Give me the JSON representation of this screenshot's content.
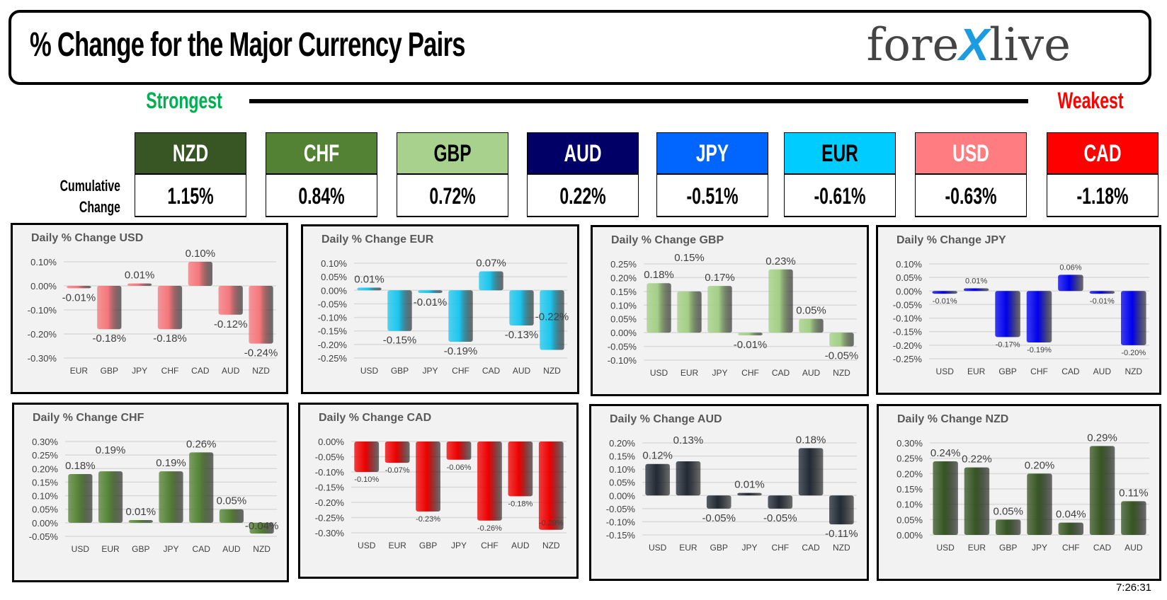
{
  "header": {
    "title": "% Change for the Major Currency Pairs",
    "logo": "forexlive"
  },
  "scale": {
    "strongest": "Strongest",
    "weakest": "Weakest",
    "row_label_1": "Cumulative",
    "row_label_2": "Change"
  },
  "currencies": [
    {
      "code": "NZD",
      "change": "1.15%",
      "color": "#375623",
      "text": "#ffffff"
    },
    {
      "code": "CHF",
      "change": "0.84%",
      "color": "#548235",
      "text": "#ffffff"
    },
    {
      "code": "GBP",
      "change": "0.72%",
      "color": "#a9d18e",
      "text": "#000000"
    },
    {
      "code": "AUD",
      "change": "0.22%",
      "color": "#000066",
      "text": "#ffffff"
    },
    {
      "code": "JPY",
      "change": "-0.51%",
      "color": "#0066ff",
      "text": "#ffffff"
    },
    {
      "code": "EUR",
      "change": "-0.61%",
      "color": "#00ccff",
      "text": "#000000"
    },
    {
      "code": "USD",
      "change": "-0.63%",
      "color": "#ff7c80",
      "text": "#ffffff"
    },
    {
      "code": "CAD",
      "change": "-1.18%",
      "color": "#ff0000",
      "text": "#ffffff"
    }
  ],
  "timestamp": "7:26:31",
  "chart_data": [
    {
      "type": "bar",
      "title": "Daily % Change USD",
      "categories": [
        "EUR",
        "GBP",
        "JPY",
        "CHF",
        "CAD",
        "AUD",
        "NZD"
      ],
      "values": [
        -0.01,
        -0.18,
        0.01,
        -0.18,
        0.1,
        -0.12,
        -0.24
      ],
      "ylim": [
        -0.3,
        0.1
      ],
      "ticks": [
        "0.10%",
        "0.00%",
        "-0.10%",
        "-0.20%",
        "-0.30%"
      ],
      "labels": [
        "-0.01%",
        "-0.18%",
        "0.01%",
        "-0.18%",
        "0.10%",
        "-0.12%",
        "-0.24%"
      ],
      "color": "#f4777b",
      "grid": true
    },
    {
      "type": "bar",
      "title": "Daily % Change EUR",
      "categories": [
        "USD",
        "GBP",
        "JPY",
        "CHF",
        "CAD",
        "AUD",
        "NZD"
      ],
      "values": [
        0.01,
        -0.15,
        -0.01,
        -0.19,
        0.07,
        -0.13,
        -0.22
      ],
      "ylim": [
        -0.25,
        0.1
      ],
      "ticks": [
        "0.10%",
        "0.05%",
        "0.00%",
        "-0.05%",
        "-0.10%",
        "-0.15%",
        "-0.20%",
        "-0.25%"
      ],
      "labels": [
        "0.01%",
        "-0.15%",
        "-0.01%",
        "-0.19%",
        "0.07%",
        "-0.13%",
        "-0.22%"
      ],
      "color": "#1cc6ee",
      "grid": true
    },
    {
      "type": "bar",
      "title": "Daily % Change GBP",
      "categories": [
        "USD",
        "EUR",
        "JPY",
        "CHF",
        "CAD",
        "AUD",
        "NZD"
      ],
      "values": [
        0.18,
        0.15,
        0.17,
        -0.01,
        0.23,
        0.05,
        -0.05
      ],
      "ylim": [
        -0.1,
        0.25
      ],
      "ticks": [
        "0.25%",
        "0.20%",
        "0.15%",
        "0.10%",
        "0.05%",
        "0.00%",
        "-0.05%",
        "-0.10%"
      ],
      "labels": [
        "0.18%",
        "0.15%",
        "0.17%",
        "-0.01%",
        "0.23%",
        "0.05%",
        "-0.05%"
      ],
      "color": "#a3cf86",
      "grid": true
    },
    {
      "type": "bar",
      "title": "Daily % Change JPY",
      "categories": [
        "USD",
        "EUR",
        "GBP",
        "CHF",
        "CAD",
        "AUD",
        "NZD"
      ],
      "values": [
        -0.01,
        0.01,
        -0.17,
        -0.19,
        0.06,
        -0.01,
        -0.2
      ],
      "ylim": [
        -0.25,
        0.1
      ],
      "ticks": [
        "0.10%",
        "0.05%",
        "0.00%",
        "-0.05%",
        "-0.10%",
        "-0.15%",
        "-0.20%",
        "-0.25%"
      ],
      "labels": [
        "-0.01%",
        "0.01%",
        "-0.17%",
        "-0.19%",
        "0.06%",
        "-0.01%",
        "-0.20%"
      ],
      "color": "#0000ee",
      "grid": true
    },
    {
      "type": "bar",
      "title": "Daily % Change CHF",
      "categories": [
        "USD",
        "EUR",
        "GBP",
        "JPY",
        "CAD",
        "AUD",
        "NZD"
      ],
      "values": [
        0.18,
        0.19,
        0.01,
        0.19,
        0.26,
        0.05,
        -0.04
      ],
      "ylim": [
        -0.05,
        0.3
      ],
      "ticks": [
        "0.30%",
        "0.25%",
        "0.20%",
        "0.15%",
        "0.10%",
        "0.05%",
        "0.00%",
        "-0.05%"
      ],
      "labels": [
        "0.18%",
        "0.19%",
        "0.01%",
        "0.19%",
        "0.26%",
        "0.05%",
        "-0.04%"
      ],
      "color": "#548235",
      "grid": true
    },
    {
      "type": "bar",
      "title": "Daily % Change CAD",
      "categories": [
        "USD",
        "EUR",
        "GBP",
        "JPY",
        "CHF",
        "AUD",
        "NZD"
      ],
      "values": [
        -0.1,
        -0.07,
        -0.23,
        -0.06,
        -0.26,
        -0.18,
        -0.29
      ],
      "ylim": [
        -0.3,
        0.0
      ],
      "ticks": [
        "0.00%",
        "-0.05%",
        "-0.10%",
        "-0.15%",
        "-0.20%",
        "-0.25%",
        "-0.30%"
      ],
      "labels": [
        "-0.10%",
        "-0.07%",
        "-0.23%",
        "-0.06%",
        "-0.26%",
        "-0.18%",
        "-0.29%"
      ],
      "color": "#ee0000",
      "grid": true
    },
    {
      "type": "bar",
      "title": "Daily % Change AUD",
      "categories": [
        "USD",
        "EUR",
        "GBP",
        "JPY",
        "CHF",
        "CAD",
        "NZD"
      ],
      "values": [
        0.12,
        0.13,
        -0.05,
        0.01,
        -0.05,
        0.18,
        -0.11
      ],
      "ylim": [
        -0.15,
        0.2
      ],
      "ticks": [
        "0.20%",
        "0.15%",
        "0.10%",
        "0.05%",
        "0.00%",
        "-0.05%",
        "-0.10%",
        "-0.15%"
      ],
      "labels": [
        "0.12%",
        "0.13%",
        "-0.05%",
        "0.01%",
        "-0.05%",
        "0.18%",
        "-0.11%"
      ],
      "color": "#222a35",
      "grid": true
    },
    {
      "type": "bar",
      "title": "Daily % Change NZD",
      "categories": [
        "USD",
        "EUR",
        "GBP",
        "JPY",
        "CHF",
        "CAD",
        "AUD"
      ],
      "values": [
        0.24,
        0.22,
        0.05,
        0.2,
        0.04,
        0.29,
        0.11
      ],
      "ylim": [
        0.0,
        0.3
      ],
      "ticks": [
        "0.30%",
        "0.25%",
        "0.20%",
        "0.15%",
        "0.10%",
        "0.05%",
        "0.00%"
      ],
      "labels": [
        "0.24%",
        "0.22%",
        "0.05%",
        "0.20%",
        "0.04%",
        "0.29%",
        "0.11%"
      ],
      "color": "#375623",
      "grid": true
    }
  ]
}
